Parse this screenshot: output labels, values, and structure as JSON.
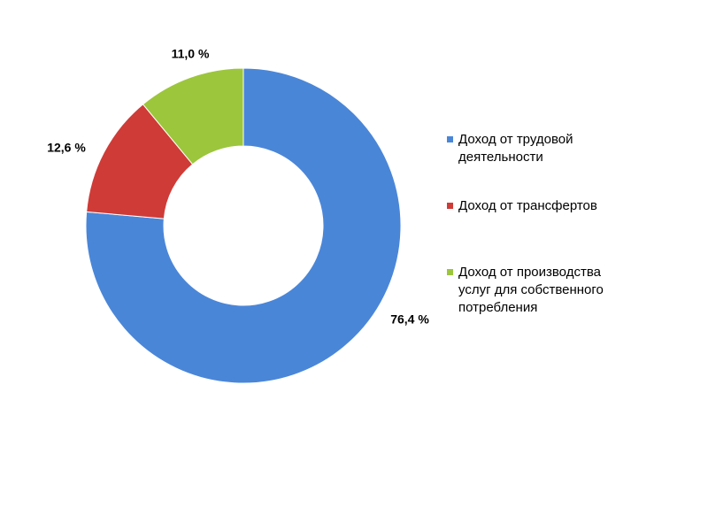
{
  "chart_data": {
    "type": "donut",
    "categories": [
      "Доход от трудовой деятельности",
      "Доход от трансфертов",
      "Доход от производства услуг для собственного потребления"
    ],
    "values": [
      76.4,
      12.6,
      11.0
    ],
    "value_labels": [
      "76,4 %",
      "12,6 %",
      "11,0 %"
    ],
    "colors": [
      "#4a86d8",
      "#cf3b37",
      "#9cc63c"
    ],
    "legend": "right"
  }
}
